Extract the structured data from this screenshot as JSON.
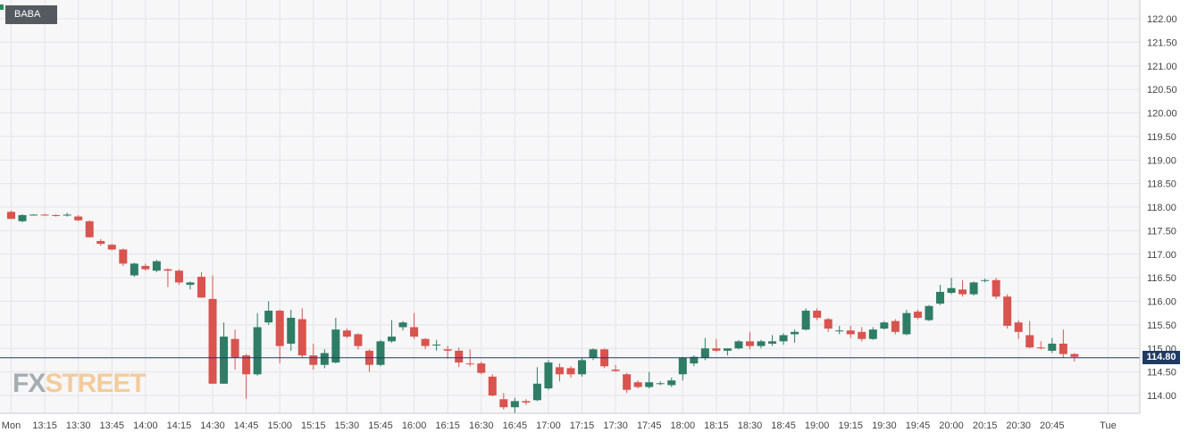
{
  "ticker": "BABA",
  "current_price_label": "114.80",
  "logo": {
    "part1": "FX",
    "part2": "STREET"
  },
  "colors": {
    "up": "#2e7d64",
    "down": "#d9534f",
    "price_line": "#1f3b64",
    "grid": "#e4e4ea",
    "background": "#f7f7f8"
  },
  "chart_data": {
    "type": "candlestick",
    "title": "",
    "ylim": [
      113.6,
      122.2
    ],
    "y_ticks": [
      "114.00",
      "114.50",
      "115.00",
      "115.50",
      "116.00",
      "116.50",
      "117.00",
      "117.50",
      "118.00",
      "118.50",
      "119.00",
      "119.50",
      "120.00",
      "120.50",
      "121.00",
      "121.50",
      "122.00"
    ],
    "x_ticks": [
      {
        "label": "Mon",
        "i": 0
      },
      {
        "label": "13:15",
        "i": 3
      },
      {
        "label": "13:30",
        "i": 6
      },
      {
        "label": "13:45",
        "i": 9
      },
      {
        "label": "14:00",
        "i": 12
      },
      {
        "label": "14:15",
        "i": 15
      },
      {
        "label": "14:30",
        "i": 18
      },
      {
        "label": "14:45",
        "i": 21
      },
      {
        "label": "15:00",
        "i": 24
      },
      {
        "label": "15:15",
        "i": 27
      },
      {
        "label": "15:30",
        "i": 30
      },
      {
        "label": "15:45",
        "i": 33
      },
      {
        "label": "16:00",
        "i": 36
      },
      {
        "label": "16:15",
        "i": 39
      },
      {
        "label": "16:30",
        "i": 42
      },
      {
        "label": "16:45",
        "i": 45
      },
      {
        "label": "17:00",
        "i": 48
      },
      {
        "label": "17:15",
        "i": 51
      },
      {
        "label": "17:30",
        "i": 54
      },
      {
        "label": "17:45",
        "i": 57
      },
      {
        "label": "18:00",
        "i": 60
      },
      {
        "label": "18:15",
        "i": 63
      },
      {
        "label": "18:30",
        "i": 66
      },
      {
        "label": "18:45",
        "i": 69
      },
      {
        "label": "19:00",
        "i": 72
      },
      {
        "label": "19:15",
        "i": 75
      },
      {
        "label": "19:30",
        "i": 78
      },
      {
        "label": "19:45",
        "i": 81
      },
      {
        "label": "20:00",
        "i": 84
      },
      {
        "label": "20:15",
        "i": 87
      },
      {
        "label": "20:30",
        "i": 90
      },
      {
        "label": "20:45",
        "i": 93
      },
      {
        "label": "Tue",
        "i": 98
      }
    ],
    "current_price": 114.8,
    "candles": [
      {
        "o": 117.9,
        "h": 117.92,
        "l": 117.75,
        "c": 117.75
      },
      {
        "o": 117.7,
        "h": 117.85,
        "l": 117.68,
        "c": 117.83
      },
      {
        "o": 117.83,
        "h": 117.85,
        "l": 117.82,
        "c": 117.84
      },
      {
        "o": 117.84,
        "h": 117.86,
        "l": 117.82,
        "c": 117.83
      },
      {
        "o": 117.83,
        "h": 117.85,
        "l": 117.8,
        "c": 117.82
      },
      {
        "o": 117.82,
        "h": 117.88,
        "l": 117.8,
        "c": 117.84
      },
      {
        "o": 117.8,
        "h": 117.83,
        "l": 117.7,
        "c": 117.72
      },
      {
        "o": 117.7,
        "h": 117.72,
        "l": 117.35,
        "c": 117.36
      },
      {
        "o": 117.28,
        "h": 117.32,
        "l": 117.18,
        "c": 117.22
      },
      {
        "o": 117.2,
        "h": 117.22,
        "l": 117.08,
        "c": 117.1
      },
      {
        "o": 117.1,
        "h": 117.12,
        "l": 116.75,
        "c": 116.8
      },
      {
        "o": 116.55,
        "h": 116.82,
        "l": 116.52,
        "c": 116.8
      },
      {
        "o": 116.75,
        "h": 116.8,
        "l": 116.65,
        "c": 116.68
      },
      {
        "o": 116.65,
        "h": 116.88,
        "l": 116.62,
        "c": 116.85
      },
      {
        "o": 116.68,
        "h": 116.7,
        "l": 116.3,
        "c": 116.65
      },
      {
        "o": 116.65,
        "h": 116.68,
        "l": 116.35,
        "c": 116.4
      },
      {
        "o": 116.35,
        "h": 116.42,
        "l": 116.25,
        "c": 116.4
      },
      {
        "o": 116.52,
        "h": 116.62,
        "l": 116.07,
        "c": 116.08
      },
      {
        "o": 116.05,
        "h": 116.55,
        "l": 114.25,
        "c": 114.25
      },
      {
        "o": 114.25,
        "h": 115.55,
        "l": 114.25,
        "c": 115.25
      },
      {
        "o": 115.2,
        "h": 115.4,
        "l": 114.55,
        "c": 114.8
      },
      {
        "o": 114.85,
        "h": 114.88,
        "l": 113.93,
        "c": 114.45
      },
      {
        "o": 114.45,
        "h": 115.75,
        "l": 114.42,
        "c": 115.45
      },
      {
        "o": 115.55,
        "h": 116.0,
        "l": 115.5,
        "c": 115.8
      },
      {
        "o": 115.8,
        "h": 115.82,
        "l": 114.68,
        "c": 115.05
      },
      {
        "o": 115.1,
        "h": 115.82,
        "l": 114.95,
        "c": 115.65
      },
      {
        "o": 115.62,
        "h": 115.85,
        "l": 114.8,
        "c": 114.85
      },
      {
        "o": 114.85,
        "h": 115.1,
        "l": 114.55,
        "c": 114.65
      },
      {
        "o": 114.65,
        "h": 114.98,
        "l": 114.58,
        "c": 114.9
      },
      {
        "o": 114.7,
        "h": 115.65,
        "l": 114.68,
        "c": 115.4
      },
      {
        "o": 115.38,
        "h": 115.42,
        "l": 115.22,
        "c": 115.25
      },
      {
        "o": 115.3,
        "h": 115.32,
        "l": 114.98,
        "c": 115.05
      },
      {
        "o": 114.95,
        "h": 114.98,
        "l": 114.5,
        "c": 114.65
      },
      {
        "o": 114.65,
        "h": 115.18,
        "l": 114.62,
        "c": 115.15
      },
      {
        "o": 115.15,
        "h": 115.6,
        "l": 115.12,
        "c": 115.25
      },
      {
        "o": 115.45,
        "h": 115.58,
        "l": 115.38,
        "c": 115.55
      },
      {
        "o": 115.45,
        "h": 115.75,
        "l": 115.2,
        "c": 115.25
      },
      {
        "o": 115.2,
        "h": 115.22,
        "l": 114.98,
        "c": 115.05
      },
      {
        "o": 115.08,
        "h": 115.18,
        "l": 114.95,
        "c": 115.08
      },
      {
        "o": 114.98,
        "h": 115.05,
        "l": 114.78,
        "c": 114.95
      },
      {
        "o": 114.95,
        "h": 115.02,
        "l": 114.6,
        "c": 114.7
      },
      {
        "o": 114.68,
        "h": 114.98,
        "l": 114.62,
        "c": 114.67
      },
      {
        "o": 114.68,
        "h": 114.72,
        "l": 114.45,
        "c": 114.48
      },
      {
        "o": 114.4,
        "h": 114.45,
        "l": 113.98,
        "c": 114.0
      },
      {
        "o": 113.92,
        "h": 114.05,
        "l": 113.7,
        "c": 113.75
      },
      {
        "o": 113.75,
        "h": 113.95,
        "l": 113.62,
        "c": 113.88
      },
      {
        "o": 113.88,
        "h": 113.92,
        "l": 113.8,
        "c": 113.85
      },
      {
        "o": 113.9,
        "h": 114.6,
        "l": 113.88,
        "c": 114.25
      },
      {
        "o": 114.15,
        "h": 114.75,
        "l": 114.12,
        "c": 114.7
      },
      {
        "o": 114.6,
        "h": 114.68,
        "l": 114.3,
        "c": 114.45
      },
      {
        "o": 114.58,
        "h": 114.62,
        "l": 114.38,
        "c": 114.45
      },
      {
        "o": 114.45,
        "h": 114.8,
        "l": 114.4,
        "c": 114.75
      },
      {
        "o": 114.8,
        "h": 115.0,
        "l": 114.75,
        "c": 114.98
      },
      {
        "o": 114.98,
        "h": 115.0,
        "l": 114.58,
        "c": 114.62
      },
      {
        "o": 114.55,
        "h": 114.65,
        "l": 114.5,
        "c": 114.52
      },
      {
        "o": 114.45,
        "h": 114.48,
        "l": 114.05,
        "c": 114.12
      },
      {
        "o": 114.28,
        "h": 114.32,
        "l": 114.15,
        "c": 114.18
      },
      {
        "o": 114.18,
        "h": 114.5,
        "l": 114.15,
        "c": 114.28
      },
      {
        "o": 114.25,
        "h": 114.3,
        "l": 114.22,
        "c": 114.26
      },
      {
        "o": 114.22,
        "h": 114.38,
        "l": 114.18,
        "c": 114.32
      },
      {
        "o": 114.45,
        "h": 114.82,
        "l": 114.32,
        "c": 114.8
      },
      {
        "o": 114.68,
        "h": 114.85,
        "l": 114.62,
        "c": 114.82
      },
      {
        "o": 114.8,
        "h": 115.22,
        "l": 114.75,
        "c": 115.0
      },
      {
        "o": 115.0,
        "h": 115.2,
        "l": 114.92,
        "c": 114.95
      },
      {
        "o": 114.95,
        "h": 115.0,
        "l": 114.85,
        "c": 115.0
      },
      {
        "o": 115.0,
        "h": 115.18,
        "l": 114.98,
        "c": 115.15
      },
      {
        "o": 115.15,
        "h": 115.35,
        "l": 114.98,
        "c": 115.05
      },
      {
        "o": 115.05,
        "h": 115.18,
        "l": 115.0,
        "c": 115.15
      },
      {
        "o": 115.1,
        "h": 115.28,
        "l": 115.05,
        "c": 115.15
      },
      {
        "o": 115.15,
        "h": 115.32,
        "l": 115.08,
        "c": 115.28
      },
      {
        "o": 115.3,
        "h": 115.4,
        "l": 115.12,
        "c": 115.35
      },
      {
        "o": 115.4,
        "h": 115.85,
        "l": 115.38,
        "c": 115.8
      },
      {
        "o": 115.8,
        "h": 115.85,
        "l": 115.6,
        "c": 115.65
      },
      {
        "o": 115.62,
        "h": 115.65,
        "l": 115.35,
        "c": 115.42
      },
      {
        "o": 115.38,
        "h": 115.48,
        "l": 115.3,
        "c": 115.38
      },
      {
        "o": 115.38,
        "h": 115.48,
        "l": 115.22,
        "c": 115.3
      },
      {
        "o": 115.35,
        "h": 115.45,
        "l": 115.15,
        "c": 115.2
      },
      {
        "o": 115.2,
        "h": 115.45,
        "l": 115.18,
        "c": 115.4
      },
      {
        "o": 115.42,
        "h": 115.58,
        "l": 115.4,
        "c": 115.55
      },
      {
        "o": 115.58,
        "h": 115.62,
        "l": 115.3,
        "c": 115.35
      },
      {
        "o": 115.3,
        "h": 115.82,
        "l": 115.28,
        "c": 115.75
      },
      {
        "o": 115.78,
        "h": 115.82,
        "l": 115.62,
        "c": 115.65
      },
      {
        "o": 115.6,
        "h": 115.92,
        "l": 115.58,
        "c": 115.9
      },
      {
        "o": 115.95,
        "h": 116.35,
        "l": 115.92,
        "c": 116.2
      },
      {
        "o": 116.18,
        "h": 116.5,
        "l": 116.15,
        "c": 116.28
      },
      {
        "o": 116.25,
        "h": 116.45,
        "l": 116.1,
        "c": 116.15
      },
      {
        "o": 116.15,
        "h": 116.42,
        "l": 116.12,
        "c": 116.4
      },
      {
        "o": 116.45,
        "h": 116.48,
        "l": 116.4,
        "c": 116.45
      },
      {
        "o": 116.45,
        "h": 116.5,
        "l": 116.05,
        "c": 116.1
      },
      {
        "o": 116.1,
        "h": 116.15,
        "l": 115.42,
        "c": 115.48
      },
      {
        "o": 115.55,
        "h": 115.6,
        "l": 115.2,
        "c": 115.35
      },
      {
        "o": 115.28,
        "h": 115.58,
        "l": 115.0,
        "c": 115.02
      },
      {
        "o": 115.02,
        "h": 115.15,
        "l": 114.98,
        "c": 115.0
      },
      {
        "o": 114.95,
        "h": 115.22,
        "l": 114.9,
        "c": 115.1
      },
      {
        "o": 115.1,
        "h": 115.4,
        "l": 114.8,
        "c": 114.88
      },
      {
        "o": 114.88,
        "h": 114.9,
        "l": 114.72,
        "c": 114.82
      }
    ]
  }
}
